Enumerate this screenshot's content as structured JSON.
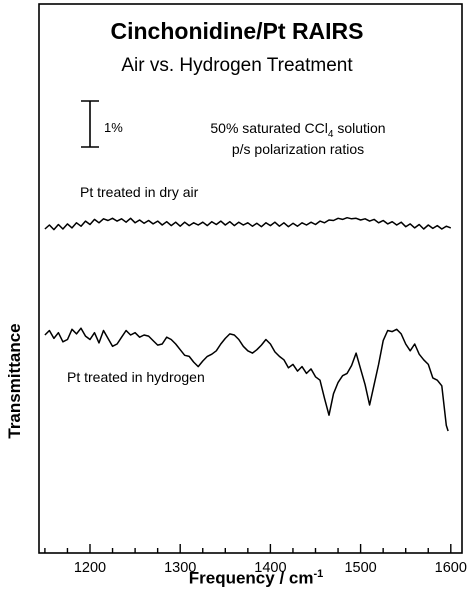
{
  "chart_data": {
    "type": "line",
    "title": "Cinchonidine/Pt RAIRS",
    "subtitle": "Air vs. Hydrogen Treatment",
    "xlabel_text": "Frequency / cm",
    "xlabel_sup": "-1",
    "ylabel": "Transmittance",
    "xlim": [
      1150,
      1600
    ],
    "xticks": [
      1200,
      1300,
      1400,
      1500,
      1600
    ],
    "scale_bar_label": "1%",
    "note_line1_pre": "50% saturated CCl",
    "note_line1_sub": "4",
    "note_line1_post": " solution",
    "note_line2": "p/s polarization ratios",
    "grid": false,
    "series": [
      {
        "name": "Pt treated in dry air",
        "x": [
          1150,
          1155,
          1160,
          1165,
          1170,
          1175,
          1180,
          1185,
          1190,
          1195,
          1200,
          1205,
          1210,
          1215,
          1220,
          1225,
          1230,
          1235,
          1240,
          1245,
          1250,
          1255,
          1260,
          1265,
          1270,
          1275,
          1280,
          1285,
          1290,
          1295,
          1300,
          1305,
          1310,
          1315,
          1320,
          1325,
          1330,
          1335,
          1340,
          1345,
          1350,
          1355,
          1360,
          1365,
          1370,
          1375,
          1380,
          1385,
          1390,
          1395,
          1400,
          1405,
          1410,
          1415,
          1420,
          1425,
          1430,
          1435,
          1440,
          1445,
          1450,
          1455,
          1460,
          1465,
          1470,
          1475,
          1480,
          1485,
          1490,
          1495,
          1500,
          1505,
          1510,
          1515,
          1520,
          1525,
          1530,
          1535,
          1540,
          1545,
          1550,
          1555,
          1560,
          1565,
          1570,
          1575,
          1580,
          1585,
          1590,
          1595,
          1600
        ],
        "y": [
          0.0,
          0.35,
          -0.05,
          0.4,
          0.0,
          0.45,
          0.1,
          0.55,
          0.25,
          0.7,
          0.4,
          0.85,
          0.55,
          0.9,
          0.75,
          0.95,
          0.7,
          0.9,
          0.6,
          0.95,
          0.55,
          0.8,
          0.5,
          0.75,
          0.45,
          0.7,
          0.35,
          0.65,
          0.3,
          0.6,
          0.25,
          0.6,
          0.3,
          0.55,
          0.35,
          0.6,
          0.3,
          0.65,
          0.4,
          0.7,
          0.35,
          0.65,
          0.3,
          0.6,
          0.35,
          0.55,
          0.25,
          0.5,
          0.2,
          0.55,
          0.3,
          0.6,
          0.25,
          0.55,
          0.2,
          0.5,
          0.25,
          0.55,
          0.35,
          0.6,
          0.4,
          0.7,
          0.55,
          0.8,
          0.75,
          0.95,
          0.85,
          1.0,
          0.9,
          0.95,
          0.8,
          0.9,
          0.7,
          0.85,
          0.55,
          0.75,
          0.45,
          0.65,
          0.35,
          0.6,
          0.2,
          0.45,
          0.1,
          0.4,
          0.0,
          0.35,
          0.05,
          0.3,
          0.0,
          0.25,
          0.1
        ]
      },
      {
        "name": "Pt treated in hydrogen",
        "x": [
          1150,
          1155,
          1160,
          1165,
          1170,
          1175,
          1180,
          1185,
          1190,
          1195,
          1200,
          1205,
          1210,
          1215,
          1220,
          1225,
          1230,
          1235,
          1240,
          1245,
          1250,
          1255,
          1260,
          1265,
          1270,
          1275,
          1280,
          1285,
          1290,
          1295,
          1300,
          1305,
          1310,
          1315,
          1320,
          1325,
          1330,
          1335,
          1340,
          1345,
          1350,
          1355,
          1360,
          1365,
          1370,
          1375,
          1380,
          1385,
          1390,
          1395,
          1400,
          1405,
          1410,
          1415,
          1420,
          1425,
          1430,
          1435,
          1440,
          1445,
          1450,
          1455,
          1460,
          1465,
          1470,
          1475,
          1480,
          1485,
          1490,
          1495,
          1500,
          1505,
          1510,
          1515,
          1520,
          1525,
          1530,
          1535,
          1540,
          1545,
          1550,
          1555,
          1560,
          1565,
          1570,
          1575,
          1580,
          1585,
          1590,
          1595,
          1597
        ],
        "y": [
          -4.6,
          -4.2,
          -4.9,
          -4.4,
          -5.2,
          -5.0,
          -4.1,
          -4.5,
          -4.0,
          -4.7,
          -5.0,
          -4.4,
          -5.3,
          -4.2,
          -4.9,
          -5.6,
          -5.4,
          -4.8,
          -4.2,
          -4.6,
          -4.4,
          -4.8,
          -4.6,
          -4.7,
          -5.1,
          -5.5,
          -5.4,
          -4.8,
          -5.0,
          -5.4,
          -5.9,
          -6.4,
          -6.5,
          -7.0,
          -7.4,
          -6.9,
          -6.5,
          -6.3,
          -6.0,
          -5.4,
          -4.9,
          -4.5,
          -4.6,
          -5.0,
          -5.6,
          -6.0,
          -6.2,
          -5.9,
          -5.5,
          -5.0,
          -5.4,
          -6.1,
          -6.5,
          -6.8,
          -7.5,
          -7.2,
          -7.8,
          -7.4,
          -8.0,
          -7.6,
          -8.3,
          -8.6,
          -10.2,
          -11.7,
          -9.8,
          -8.8,
          -8.2,
          -8.0,
          -7.3,
          -6.2,
          -7.6,
          -9.0,
          -10.8,
          -9.0,
          -7.2,
          -5.1,
          -4.2,
          -4.3,
          -4.1,
          -4.5,
          -5.4,
          -6.0,
          -5.4,
          -6.3,
          -6.8,
          -7.2,
          -8.4,
          -8.6,
          -9.1,
          -12.6,
          -13.1
        ]
      }
    ]
  }
}
